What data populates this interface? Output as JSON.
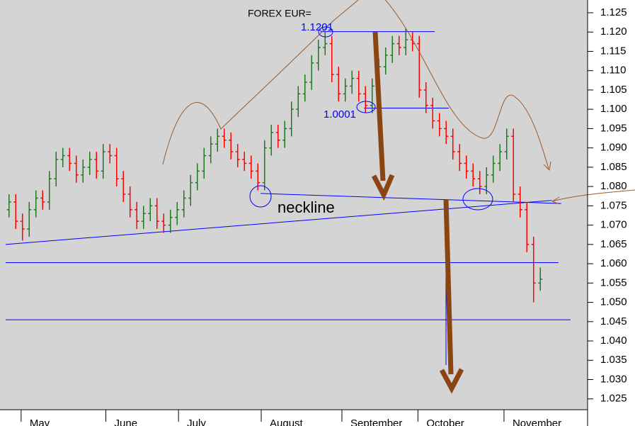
{
  "chart_data": {
    "type": "ohlc",
    "title": "FOREX EUR=",
    "up_color": "#1f7a1f",
    "down_color": "#ff0000",
    "xlim": [
      -0.5,
      85.5
    ],
    "xticks": [
      {
        "value": 1.8,
        "label": "May"
      },
      {
        "value": 14.4,
        "label": "June"
      },
      {
        "value": 25.2,
        "label": "July"
      },
      {
        "value": 37.5,
        "label": "August"
      },
      {
        "value": 49.5,
        "label": "September"
      },
      {
        "value": 60.8,
        "label": "October"
      },
      {
        "value": 73.6,
        "label": "November"
      }
    ],
    "ylim": [
      1.0222,
      1.1283
    ],
    "yticks": [
      1.025,
      {
        "value": 1.03,
        "label": "1.030"
      },
      1.035,
      {
        "value": 1.04,
        "label": "1.040"
      },
      1.045,
      {
        "value": 1.05,
        "label": "1.050"
      },
      1.055,
      {
        "value": 1.06,
        "label": "1.060"
      },
      1.065,
      {
        "value": 1.07,
        "label": "1.070"
      },
      1.075,
      {
        "value": 1.08,
        "label": "1.080"
      },
      1.085,
      {
        "value": 1.09,
        "label": "1.090"
      },
      1.095,
      {
        "value": 1.1,
        "label": "1.100"
      },
      1.105,
      {
        "value": 1.11,
        "label": "1.110"
      },
      1.115,
      {
        "value": 1.12,
        "label": "1.120"
      },
      1.125
    ],
    "bars": [
      [
        1.074,
        1.078,
        1.072,
        1.076
      ],
      [
        1.076,
        1.078,
        1.069,
        1.071
      ],
      [
        1.071,
        1.073,
        1.066,
        1.069
      ],
      [
        1.069,
        1.076,
        1.067,
        1.074
      ],
      [
        1.074,
        1.079,
        1.072,
        1.077
      ],
      [
        1.077,
        1.079,
        1.074,
        1.076
      ],
      [
        1.076,
        1.084,
        1.074,
        1.082
      ],
      [
        1.082,
        1.089,
        1.08,
        1.087
      ],
      [
        1.087,
        1.09,
        1.085,
        1.088
      ],
      [
        1.088,
        1.09,
        1.084,
        1.086
      ],
      [
        1.086,
        1.088,
        1.081,
        1.083
      ],
      [
        1.083,
        1.087,
        1.081,
        1.085
      ],
      [
        1.085,
        1.089,
        1.083,
        1.087
      ],
      [
        1.087,
        1.089,
        1.082,
        1.084
      ],
      [
        1.084,
        1.091,
        1.082,
        1.089
      ],
      [
        1.089,
        1.091,
        1.086,
        1.088
      ],
      [
        1.088,
        1.09,
        1.08,
        1.082
      ],
      [
        1.082,
        1.084,
        1.076,
        1.078
      ],
      [
        1.078,
        1.08,
        1.072,
        1.074
      ],
      [
        1.074,
        1.076,
        1.069,
        1.071
      ],
      [
        1.071,
        1.075,
        1.069,
        1.073
      ],
      [
        1.073,
        1.077,
        1.071,
        1.075
      ],
      [
        1.075,
        1.077,
        1.069,
        1.071
      ],
      [
        1.071,
        1.073,
        1.068,
        1.07
      ],
      [
        1.07,
        1.074,
        1.068,
        1.072
      ],
      [
        1.072,
        1.076,
        1.07,
        1.074
      ],
      [
        1.074,
        1.079,
        1.072,
        1.077
      ],
      [
        1.077,
        1.083,
        1.075,
        1.081
      ],
      [
        1.081,
        1.086,
        1.079,
        1.084
      ],
      [
        1.084,
        1.09,
        1.082,
        1.088
      ],
      [
        1.088,
        1.093,
        1.086,
        1.091
      ],
      [
        1.091,
        1.095,
        1.089,
        1.093
      ],
      [
        1.093,
        1.095,
        1.09,
        1.092
      ],
      [
        1.092,
        1.094,
        1.087,
        1.089
      ],
      [
        1.089,
        1.091,
        1.085,
        1.087
      ],
      [
        1.087,
        1.089,
        1.084,
        1.086
      ],
      [
        1.086,
        1.088,
        1.082,
        1.084
      ],
      [
        1.084,
        1.086,
        1.079,
        1.081
      ],
      [
        1.081,
        1.092,
        1.079,
        1.09
      ],
      [
        1.09,
        1.096,
        1.088,
        1.094
      ],
      [
        1.094,
        1.096,
        1.09,
        1.092
      ],
      [
        1.092,
        1.097,
        1.09,
        1.095
      ],
      [
        1.095,
        1.102,
        1.093,
        1.1
      ],
      [
        1.1,
        1.106,
        1.098,
        1.104
      ],
      [
        1.104,
        1.109,
        1.102,
        1.107
      ],
      [
        1.107,
        1.114,
        1.105,
        1.112
      ],
      [
        1.112,
        1.118,
        1.11,
        1.116
      ],
      [
        1.116,
        1.12,
        1.114,
        1.117
      ],
      [
        1.117,
        1.119,
        1.107,
        1.109
      ],
      [
        1.109,
        1.111,
        1.102,
        1.104
      ],
      [
        1.104,
        1.108,
        1.102,
        1.106
      ],
      [
        1.106,
        1.11,
        1.104,
        1.108
      ],
      [
        1.108,
        1.11,
        1.102,
        1.104
      ],
      [
        1.104,
        1.106,
        1.099,
        1.101
      ],
      [
        1.101,
        1.108,
        1.099,
        1.106
      ],
      [
        1.106,
        1.113,
        1.104,
        1.111
      ],
      [
        1.111,
        1.116,
        1.109,
        1.114
      ],
      [
        1.114,
        1.119,
        1.112,
        1.117
      ],
      [
        1.117,
        1.119,
        1.114,
        1.116
      ],
      [
        1.116,
        1.121,
        1.114,
        1.118
      ],
      [
        1.118,
        1.12,
        1.115,
        1.117
      ],
      [
        1.117,
        1.119,
        1.103,
        1.105
      ],
      [
        1.105,
        1.107,
        1.099,
        1.101
      ],
      [
        1.101,
        1.103,
        1.095,
        1.097
      ],
      [
        1.097,
        1.099,
        1.093,
        1.095
      ],
      [
        1.095,
        1.097,
        1.091,
        1.093
      ],
      [
        1.093,
        1.095,
        1.087,
        1.089
      ],
      [
        1.089,
        1.091,
        1.084,
        1.086
      ],
      [
        1.086,
        1.088,
        1.082,
        1.084
      ],
      [
        1.084,
        1.086,
        1.08,
        1.082
      ],
      [
        1.082,
        1.084,
        1.078,
        1.08
      ],
      [
        1.08,
        1.085,
        1.078,
        1.083
      ],
      [
        1.083,
        1.088,
        1.081,
        1.086
      ],
      [
        1.086,
        1.091,
        1.084,
        1.089
      ],
      [
        1.089,
        1.095,
        1.087,
        1.093
      ],
      [
        1.093,
        1.095,
        1.076,
        1.078
      ],
      [
        1.078,
        1.08,
        1.072,
        1.074
      ],
      [
        1.074,
        1.076,
        1.063,
        1.065
      ],
      [
        1.065,
        1.067,
        1.05,
        1.055
      ],
      [
        1.055,
        1.059,
        1.053,
        1.056
      ]
    ],
    "hlines": [
      {
        "value": 1.1201,
        "from": 46.3,
        "to": 63.3
      },
      {
        "value": 1.1003,
        "from": 52.8,
        "to": 65.4
      },
      {
        "value": 1.0603,
        "from": -0.5,
        "to": 81.7
      },
      {
        "value": 1.0455,
        "from": -0.5,
        "to": 83.5
      }
    ],
    "lines": [
      {
        "from": [
          37.4,
          1.0782
        ],
        "to": [
          82.1,
          1.0756
        ]
      },
      {
        "from": [
          -0.5,
          1.065
        ],
        "to": [
          80.7,
          1.0764
        ]
      }
    ],
    "annotations": [
      "1.1201",
      "1.0001",
      "neckline"
    ]
  }
}
